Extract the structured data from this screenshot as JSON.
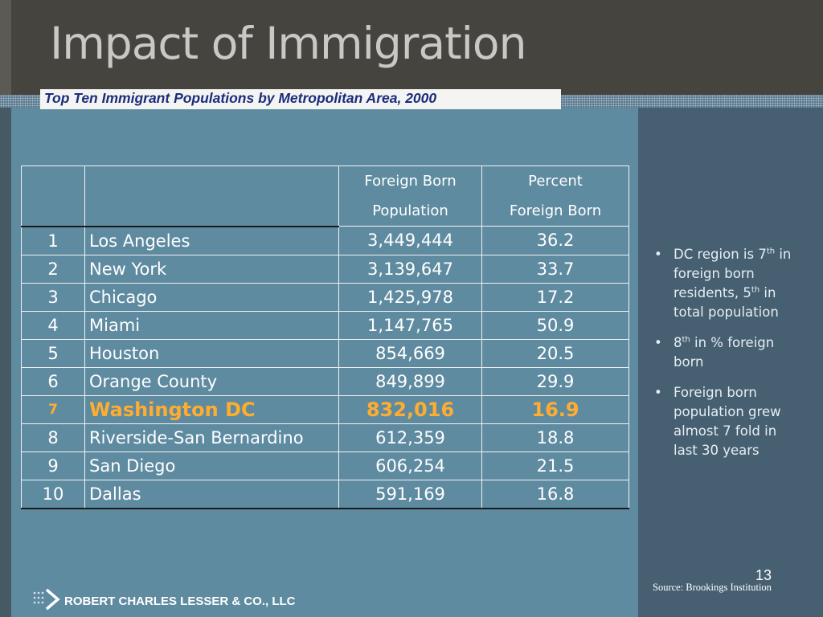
{
  "slide": {
    "title": "Impact of Immigration",
    "subtitle": "Top Ten Immigrant Populations by Metropolitan Area, 2000"
  },
  "table": {
    "headers": {
      "rank": "",
      "area": "",
      "population_line1": "Foreign Born",
      "population_line2": "Population",
      "percent_line1": "Percent",
      "percent_line2": "Foreign Born"
    },
    "rows": [
      {
        "rank": "1",
        "area": "Los Angeles",
        "population": "3,449,444",
        "percent": "36.2"
      },
      {
        "rank": "2",
        "area": "New York",
        "population": "3,139,647",
        "percent": "33.7"
      },
      {
        "rank": "3",
        "area": "Chicago",
        "population": "1,425,978",
        "percent": "17.2"
      },
      {
        "rank": "4",
        "area": "Miami",
        "population": "1,147,765",
        "percent": "50.9"
      },
      {
        "rank": "5",
        "area": "Houston",
        "population": "854,669",
        "percent": "20.5"
      },
      {
        "rank": "6",
        "area": "Orange County",
        "population": "849,899",
        "percent": "29.9"
      },
      {
        "rank": "7",
        "area": "Washington DC",
        "population": "832,016",
        "percent": "16.9"
      },
      {
        "rank": "8",
        "area": "Riverside-San Bernardino",
        "population": "612,359",
        "percent": "18.8"
      },
      {
        "rank": "9",
        "area": "San Diego",
        "population": "606,254",
        "percent": "21.5"
      },
      {
        "rank": "10",
        "area": "Dallas",
        "population": "591,169",
        "percent": "16.8"
      }
    ],
    "highlight_color": "#ffad2f"
  },
  "bullets": {
    "b1": {
      "text1": "DC region is 7",
      "sup1": "th",
      "text2": " in foreign born residents, 5",
      "sup2": "th",
      "text3": " in total population"
    },
    "b2": {
      "text1": "8",
      "sup1": "th",
      "text2": " in % foreign born"
    },
    "b3": {
      "text1": "Foreign born population grew almost 7 fold in last 30 years"
    }
  },
  "footer": {
    "page_number": "13",
    "source": "Source: Brookings Institution",
    "company": "ROBERT CHARLES LESSER & CO., LLC"
  },
  "colors": {
    "title_bar": "#45443f",
    "content_panel": "#5f8ba1",
    "side_panel": "#466072",
    "subtitle_text": "#1b2c7b"
  }
}
